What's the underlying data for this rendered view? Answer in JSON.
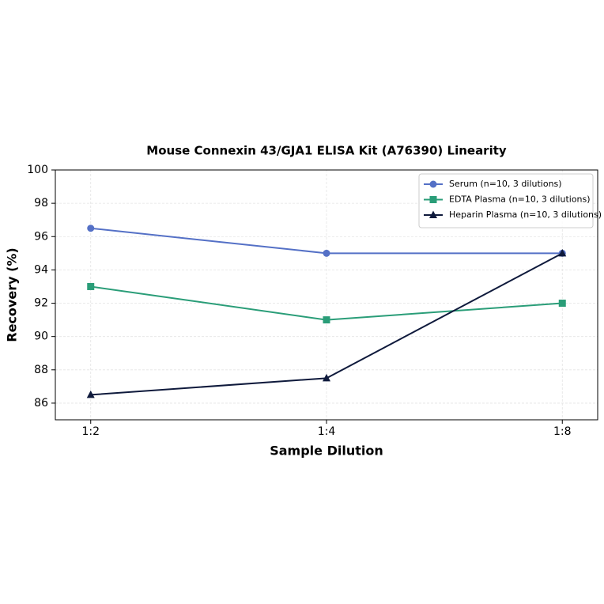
{
  "chart_data": {
    "type": "line",
    "title": "Mouse Connexin 43/GJA1 ELISA Kit (A76390) Linearity",
    "x_label": "Sample Dilution",
    "y_label": "Recovery (%)",
    "categories": [
      "1:2",
      "1:4",
      "1:8"
    ],
    "series": [
      {
        "name": "Serum (n=10, 3 dilutions)",
        "color": "#5470c6",
        "marker": "circle",
        "values": [
          96.5,
          95,
          95
        ]
      },
      {
        "name": "EDTA Plasma (n=10, 3 dilutions)",
        "color": "#2a9d78",
        "marker": "square",
        "values": [
          93,
          91,
          92
        ]
      },
      {
        "name": "Heparin Plasma (n=10, 3 dilutions)",
        "color": "#0f1a3c",
        "marker": "triangle",
        "values": [
          86.5,
          87.5,
          95
        ]
      }
    ],
    "ylim": [
      85,
      100
    ],
    "yticks": [
      86,
      88,
      90,
      92,
      94,
      96,
      98,
      100
    ],
    "grid": true,
    "legend": "upper-right"
  }
}
